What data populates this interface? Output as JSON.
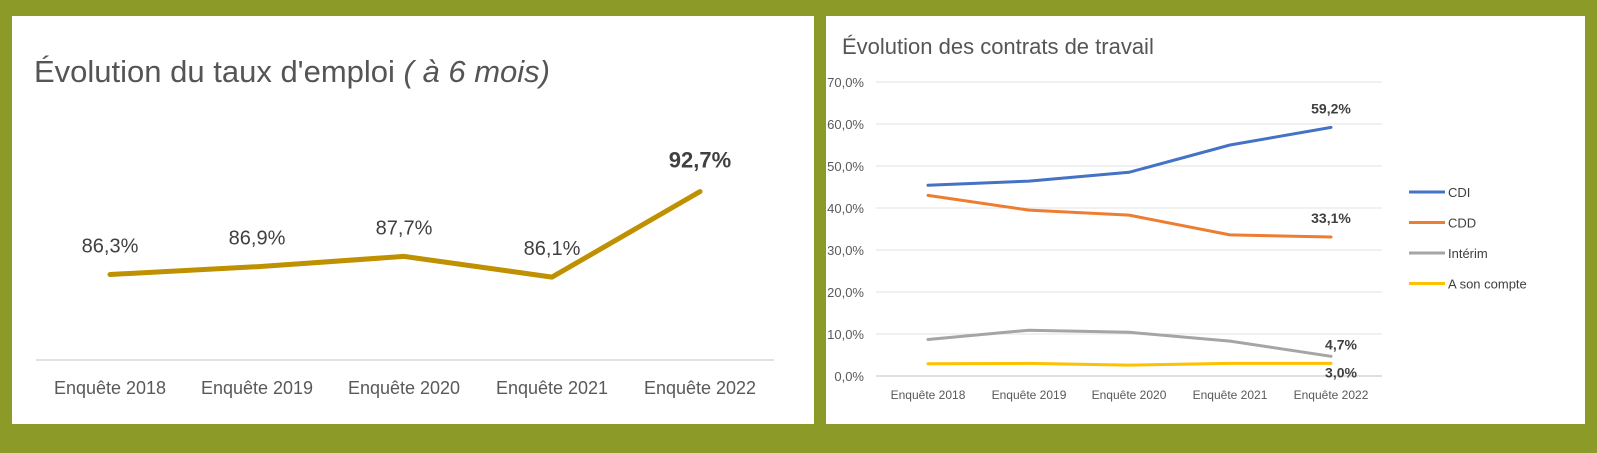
{
  "colors": {
    "background": "#8c9a27",
    "panel": "#ffffff",
    "left_line": "#bf9000",
    "cdi": "#4472c4",
    "cdd": "#ed7d31",
    "interim": "#a5a5a5",
    "son_compte": "#ffc000"
  },
  "left_chart": {
    "title_main": "Évolution du taux d'emploi",
    "title_italic": "( à 6 mois)"
  },
  "right_chart": {
    "title": "Évolution des contrats de travail"
  },
  "chart_data": [
    {
      "type": "line",
      "title": "Évolution du taux d'emploi ( à 6 mois)",
      "categories": [
        "Enquête 2018",
        "Enquête 2019",
        "Enquête 2020",
        "Enquête 2021",
        "Enquête 2022"
      ],
      "values": [
        86.3,
        86.9,
        87.7,
        86.1,
        92.7
      ],
      "data_labels": [
        "86,3%",
        "86,9%",
        "87,7%",
        "86,1%",
        "92,7%"
      ],
      "ylim": [
        80,
        97
      ],
      "grid": false,
      "legend": "none"
    },
    {
      "type": "line",
      "title": "Évolution des contrats de travail",
      "categories": [
        "Enquête 2018",
        "Enquête 2019",
        "Enquête 2020",
        "Enquête 2021",
        "Enquête 2022"
      ],
      "y_ticks": [
        "0,0%",
        "10,0%",
        "20,0%",
        "30,0%",
        "40,0%",
        "50,0%",
        "60,0%",
        "70,0%"
      ],
      "ylim": [
        0,
        70
      ],
      "grid": true,
      "legend": "right",
      "series": [
        {
          "name": "CDI",
          "values": [
            45.4,
            46.4,
            48.5,
            55.0,
            59.2
          ],
          "end_label": "59,2%"
        },
        {
          "name": "CDD",
          "values": [
            43.0,
            39.5,
            38.3,
            33.6,
            33.1
          ],
          "end_label": "33,1%"
        },
        {
          "name": "Intérim",
          "values": [
            8.7,
            10.9,
            10.4,
            8.3,
            4.7
          ],
          "end_label": "4,7%"
        },
        {
          "name": "A son compte",
          "values": [
            2.9,
            3.0,
            2.6,
            3.0,
            3.0
          ],
          "end_label": "3,0%"
        }
      ]
    }
  ]
}
